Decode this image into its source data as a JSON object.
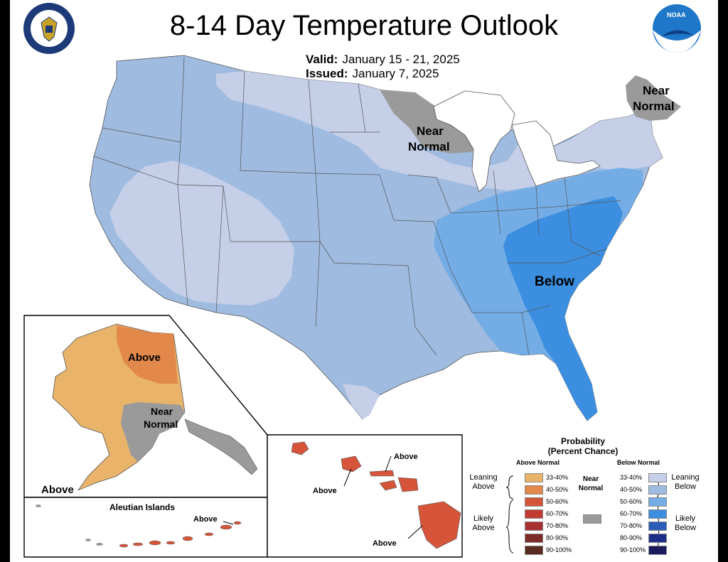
{
  "title": "8-14 Day Temperature Outlook",
  "valid_label": "Valid:",
  "valid_value": "January 15 - 21, 2025",
  "issued_label": "Issued:",
  "issued_value": "January 7, 2025",
  "logos": {
    "left": "doc-seal-icon",
    "right": "noaa-logo-icon",
    "noaa_text": "NOAA"
  },
  "map_labels": {
    "near_normal_ne_1": "Near",
    "near_normal_ne_2": "Normal",
    "near_normal_mn_1": "Near",
    "near_normal_mn_2": "Normal",
    "below": "Below",
    "ak_above_top": "Above",
    "ak_near_1": "Near",
    "ak_near_2": "Normal",
    "ak_above_bottom": "Above",
    "aleutian_title": "Aleutian Islands",
    "aleutian_above": "Above",
    "hi_above_1": "Above",
    "hi_above_2": "Above",
    "hi_above_3": "Above"
  },
  "legend": {
    "title_1": "Probability",
    "title_2": "(Percent Chance)",
    "above_header": "Above Normal",
    "below_header": "Below Normal",
    "near_1": "Near",
    "near_2": "Normal",
    "leaning_above_1": "Leaning",
    "leaning_above_2": "Above",
    "likely_above_1": "Likely",
    "likely_above_2": "Above",
    "leaning_below_1": "Leaning",
    "leaning_below_2": "Below",
    "likely_below_1": "Likely",
    "likely_below_2": "Below",
    "ranges": [
      "33-40%",
      "40-50%",
      "50-60%",
      "60-70%",
      "70-80%",
      "80-90%",
      "90-100%"
    ],
    "above_colors": [
      "#e9b46a",
      "#e2884a",
      "#d6543a",
      "#c23b33",
      "#a83030",
      "#7d2a2a",
      "#5a2a20"
    ],
    "below_colors": [
      "#c5cfe8",
      "#9fbbe0",
      "#74ade6",
      "#3b8ee0",
      "#2b5db8",
      "#1e2f8a",
      "#1a1a5c"
    ],
    "near_color": "#9a9a9a"
  },
  "colors": {
    "leaning_below": "#c5cfe8",
    "below_40_50": "#9fbbe0",
    "below_50_60": "#74ade6",
    "below_60_70": "#3b8ee0",
    "above_33_40": "#e9b46a",
    "above_40_50": "#e2884a",
    "above_50_60": "#d6543a",
    "near_normal": "#9a9a9a"
  }
}
